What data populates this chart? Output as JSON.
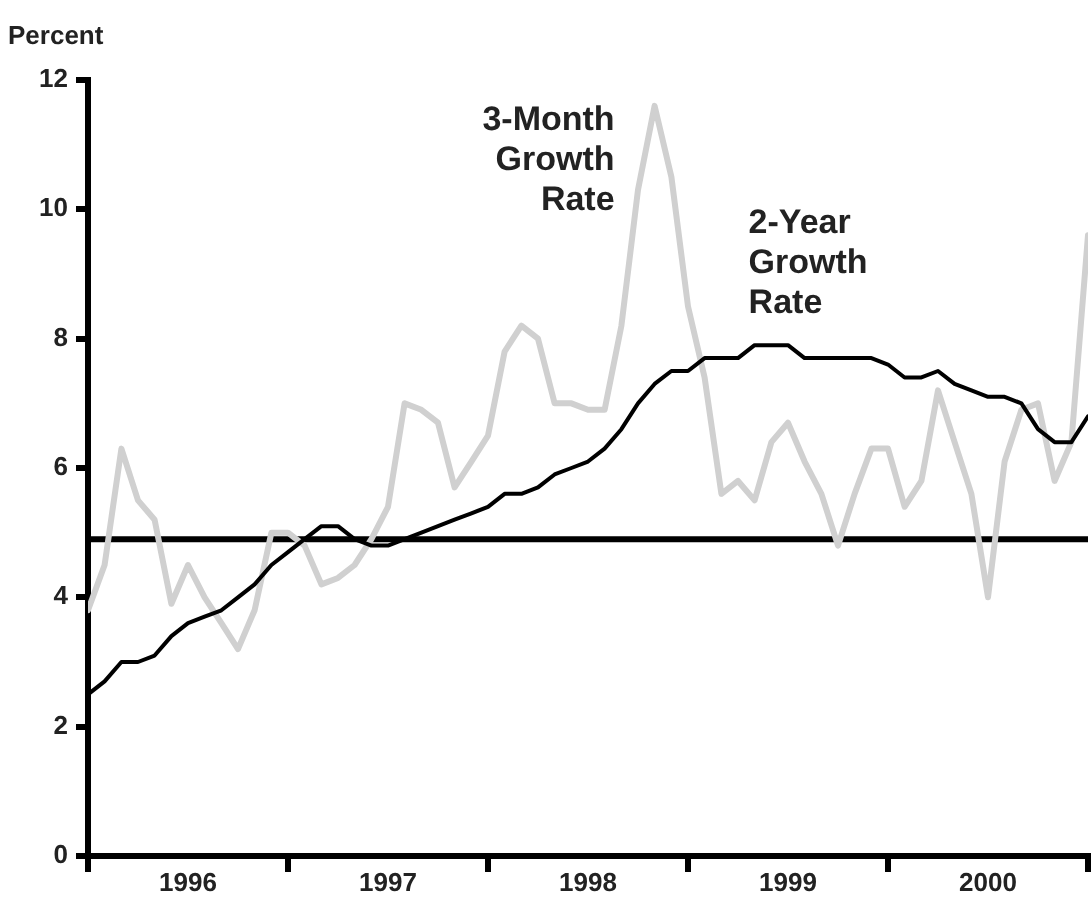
{
  "chart_data": {
    "type": "line",
    "ylabel": "Percent",
    "x": [
      1996,
      1996.083,
      1996.167,
      1996.25,
      1996.333,
      1996.417,
      1996.5,
      1996.583,
      1996.667,
      1996.75,
      1996.833,
      1996.917,
      1997,
      1997.083,
      1997.167,
      1997.25,
      1997.333,
      1997.417,
      1997.5,
      1997.583,
      1997.667,
      1997.75,
      1997.833,
      1997.917,
      1998,
      1998.083,
      1998.167,
      1998.25,
      1998.333,
      1998.417,
      1998.5,
      1998.583,
      1998.667,
      1998.75,
      1998.833,
      1998.917,
      1999,
      1999.083,
      1999.167,
      1999.25,
      1999.333,
      1999.417,
      1999.5,
      1999.583,
      1999.667,
      1999.75,
      1999.833,
      1999.917,
      2000,
      2000.083,
      2000.167,
      2000.25,
      2000.333,
      2000.417,
      2000.5,
      2000.583,
      2000.667,
      2000.75,
      2000.833,
      2000.917,
      2001
    ],
    "series": [
      {
        "name": "3-Month Growth Rate",
        "color": "#d0d0d0",
        "values": [
          3.8,
          4.5,
          6.3,
          5.5,
          5.2,
          3.9,
          4.5,
          4.0,
          3.6,
          3.2,
          3.8,
          5.0,
          5.0,
          4.8,
          4.2,
          4.3,
          4.5,
          4.9,
          5.4,
          7.0,
          6.9,
          6.7,
          5.7,
          6.1,
          6.5,
          7.8,
          8.2,
          8.0,
          7.0,
          7.0,
          6.9,
          6.9,
          8.2,
          10.3,
          11.6,
          10.5,
          8.5,
          7.4,
          5.6,
          5.8,
          5.5,
          6.4,
          6.7,
          6.1,
          5.6,
          4.8,
          5.6,
          6.3,
          6.3,
          5.4,
          5.8,
          7.2,
          6.4,
          5.6,
          4.0,
          6.1,
          6.9,
          7.0,
          5.8,
          6.4,
          9.6
        ]
      },
      {
        "name": "2-Year Growth Rate",
        "color": "#000000",
        "values": [
          2.5,
          2.7,
          3.0,
          3.0,
          3.1,
          3.4,
          3.6,
          3.7,
          3.8,
          4.0,
          4.2,
          4.5,
          4.7,
          4.9,
          5.1,
          5.1,
          4.9,
          4.8,
          4.8,
          4.9,
          5.0,
          5.1,
          5.2,
          5.3,
          5.4,
          5.6,
          5.6,
          5.7,
          5.9,
          6.0,
          6.1,
          6.3,
          6.6,
          7.0,
          7.3,
          7.5,
          7.5,
          7.7,
          7.7,
          7.7,
          7.9,
          7.9,
          7.9,
          7.7,
          7.7,
          7.7,
          7.7,
          7.7,
          7.6,
          7.4,
          7.4,
          7.5,
          7.3,
          7.2,
          7.1,
          7.1,
          7.0,
          6.6,
          6.4,
          6.4,
          6.8
        ]
      }
    ],
    "xlim": [
      1996,
      2001
    ],
    "xticks": [
      {
        "value": 1996,
        "label": null
      },
      {
        "value": 1996.5,
        "label": "1996"
      },
      {
        "value": 1997,
        "label": null
      },
      {
        "value": 1997.5,
        "label": "1997"
      },
      {
        "value": 1998,
        "label": null
      },
      {
        "value": 1998.5,
        "label": "1998"
      },
      {
        "value": 1999,
        "label": null
      },
      {
        "value": 1999.5,
        "label": "1999"
      },
      {
        "value": 2000,
        "label": null
      },
      {
        "value": 2000.5,
        "label": "2000"
      },
      {
        "value": 2001,
        "label": null
      }
    ],
    "ylim": [
      0,
      12
    ],
    "yticks": [
      0,
      2,
      4,
      6,
      8,
      10,
      12
    ],
    "ref_lines": [
      {
        "axis": "y",
        "value": 4.9,
        "color": "#000000"
      }
    ],
    "grid": false,
    "legend": false,
    "marker": "none",
    "line_style": "solid"
  }
}
